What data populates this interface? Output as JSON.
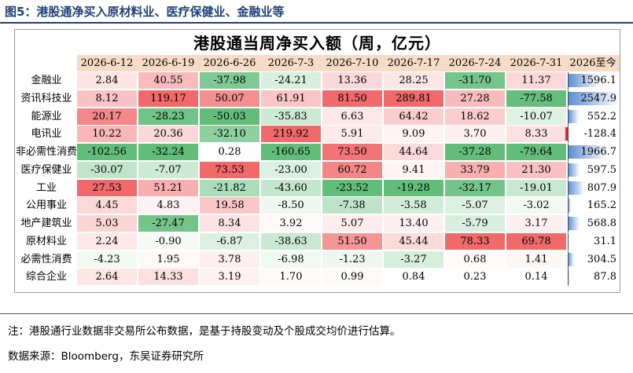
{
  "figure_title": "图5：港股通净买入原材料业、医疗保健业、金融业等",
  "note": "注：港股通行业数据非交易所公布数据，是基于持股变动及个股成交均价进行估算。",
  "source": "数据来源：Bloomberg，东吴证券研究所",
  "colors": {
    "title_blue": "#1f3f78",
    "header_band": "#f6dcc6",
    "positive_max": "#f0696b",
    "negative_max": "#62bd7b",
    "ytd_bar_blue": "#5b8cd0",
    "ytd_bar_red": "#e0262a"
  },
  "chart_data": {
    "type": "table",
    "title": "港股通当周净买入额（周，亿元）",
    "columns": [
      "2026-6-12",
      "2026-6-19",
      "2026-6-26",
      "2026-7-3",
      "2026-7-10",
      "2026-7-17",
      "2026-7-24",
      "2026-7-31"
    ],
    "ytd_column": "2026至今",
    "rows": [
      {
        "label": "金融业",
        "values": [
          2.84,
          40.55,
          -37.98,
          -24.21,
          13.36,
          28.25,
          -31.7,
          11.37
        ],
        "ytd": 1596.1
      },
      {
        "label": "资讯科技业",
        "values": [
          8.12,
          119.17,
          50.07,
          61.91,
          81.5,
          289.81,
          27.28,
          -77.58
        ],
        "ytd": 2547.9
      },
      {
        "label": "能源业",
        "values": [
          20.17,
          -28.23,
          -50.03,
          -35.83,
          6.63,
          64.42,
          18.62,
          -10.07
        ],
        "ytd": 552.2
      },
      {
        "label": "电讯业",
        "values": [
          10.22,
          20.36,
          -32.1,
          219.92,
          5.91,
          9.09,
          3.7,
          8.33
        ],
        "ytd": -128.4
      },
      {
        "label": "非必需性消费",
        "values": [
          -102.56,
          -32.24,
          0.28,
          -160.65,
          73.5,
          44.64,
          -37.28,
          -79.64
        ],
        "ytd": 1966.7
      },
      {
        "label": "医疗保健业",
        "values": [
          -30.07,
          -7.07,
          73.53,
          -23.0,
          60.72,
          9.41,
          33.79,
          21.3
        ],
        "ytd": 597.5
      },
      {
        "label": "工业",
        "values": [
          27.53,
          51.21,
          -21.82,
          -43.6,
          -23.52,
          -19.28,
          -32.17,
          -19.01
        ],
        "ytd": 807.9
      },
      {
        "label": "公用事业",
        "values": [
          4.45,
          4.83,
          19.58,
          -8.5,
          -7.38,
          -3.58,
          -5.07,
          -3.02
        ],
        "ytd": 165.2
      },
      {
        "label": "地产建筑业",
        "values": [
          5.03,
          -27.47,
          8.34,
          3.92,
          5.07,
          13.4,
          -5.79,
          3.17
        ],
        "ytd": 568.8
      },
      {
        "label": "原材料业",
        "values": [
          2.24,
          -0.9,
          -6.87,
          -38.63,
          51.5,
          45.44,
          78.33,
          69.78
        ],
        "ytd": 31.1
      },
      {
        "label": "必需性消费",
        "values": [
          -4.23,
          1.95,
          3.78,
          -6.98,
          -1.23,
          -3.27,
          0.68,
          1.41
        ],
        "ytd": 304.5
      },
      {
        "label": "综合企业",
        "values": [
          2.64,
          14.33,
          3.19,
          1.7,
          0.99,
          0.84,
          0.23,
          0.14
        ],
        "ytd": 87.8
      }
    ]
  }
}
